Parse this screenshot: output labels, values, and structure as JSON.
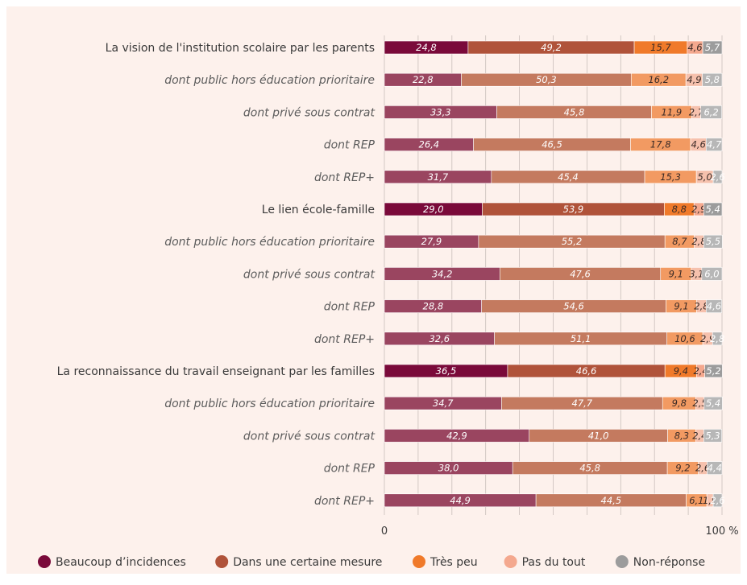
{
  "chart_data": {
    "type": "bar",
    "orientation": "horizontal",
    "stacked": true,
    "xlim": [
      0,
      100
    ],
    "x_tick_labels": [
      "0",
      "100 %"
    ],
    "categories": [
      {
        "label": "La vision de l'institution scolaire par les parents",
        "level": "main"
      },
      {
        "label": "dont public hors éducation prioritaire",
        "level": "sub"
      },
      {
        "label": "dont privé sous contrat",
        "level": "sub"
      },
      {
        "label": "dont REP",
        "level": "sub"
      },
      {
        "label": "dont REP+",
        "level": "sub"
      },
      {
        "label": "Le lien école-famille",
        "level": "main"
      },
      {
        "label": "dont public hors éducation prioritaire",
        "level": "sub"
      },
      {
        "label": "dont privé sous contrat",
        "level": "sub"
      },
      {
        "label": "dont REP",
        "level": "sub"
      },
      {
        "label": "dont REP+",
        "level": "sub"
      },
      {
        "label": "La reconnaissance du travail enseignant par les familles",
        "level": "main"
      },
      {
        "label": "dont public hors éducation prioritaire",
        "level": "sub"
      },
      {
        "label": "dont privé sous contrat",
        "level": "sub"
      },
      {
        "label": "dont REP",
        "level": "sub"
      },
      {
        "label": "dont REP+",
        "level": "sub"
      }
    ],
    "series": [
      {
        "name": "Beaucoup d’incidences",
        "color": "#7a0a3a",
        "color_sub": "#9a4560",
        "values": [
          24.8,
          22.8,
          33.3,
          26.4,
          31.7,
          29.0,
          27.9,
          34.2,
          28.8,
          32.6,
          36.5,
          34.7,
          42.9,
          38.0,
          44.9
        ],
        "labels": [
          "24,8",
          "22,8",
          "33,3",
          "26,4",
          "31,7",
          "29,0",
          "27,9",
          "34,2",
          "28,8",
          "32,6",
          "36,5",
          "34,7",
          "42,9",
          "38,0",
          "44,9"
        ]
      },
      {
        "name": "Dans une certaine mesure",
        "color": "#b0533a",
        "color_sub": "#c47a5f",
        "values": [
          49.2,
          50.3,
          45.8,
          46.5,
          45.4,
          53.9,
          55.2,
          47.6,
          54.6,
          51.1,
          46.6,
          47.7,
          41.0,
          45.8,
          44.5
        ],
        "labels": [
          "49,2",
          "50,3",
          "45,8",
          "46,5",
          "45,4",
          "53,9",
          "55,2",
          "47,6",
          "54,6",
          "51,1",
          "46,6",
          "47,7",
          "41,0",
          "45,8",
          "44,5"
        ]
      },
      {
        "name": "Très peu",
        "color": "#f07a2a",
        "color_sub": "#f29a62",
        "values": [
          15.7,
          16.2,
          11.9,
          17.8,
          15.3,
          8.8,
          8.7,
          9.1,
          9.1,
          10.6,
          9.4,
          9.8,
          8.3,
          9.2,
          6.1
        ],
        "labels": [
          "15,7",
          "16,2",
          "11,9",
          "17,8",
          "15,3",
          "8,8",
          "8,7",
          "9,1",
          "9,1",
          "10,6",
          "9,4",
          "9,8",
          "8,3",
          "9,2",
          "6,1"
        ]
      },
      {
        "name": "Pas du tout",
        "color": "#f4a88e",
        "color_sub": "#f6c1ad",
        "values": [
          4.6,
          4.9,
          2.7,
          4.6,
          5.0,
          2.9,
          2.8,
          3.1,
          2.8,
          2.9,
          2.4,
          2.5,
          2.4,
          2.6,
          1.9
        ],
        "labels": [
          "4,6",
          "4,9",
          "2,7",
          "4,6",
          "5,0",
          "2,9",
          "2,8",
          "3,1",
          "2,8",
          "2,9",
          "2,4",
          "2,5",
          "2,4",
          "2,6",
          "1,9"
        ]
      },
      {
        "name": "Non-réponse",
        "color": "#9c9c9c",
        "color_sub": "#b7b7b7",
        "values": [
          5.7,
          5.8,
          6.2,
          4.7,
          2.6,
          5.4,
          5.5,
          6.0,
          4.6,
          2.8,
          5.2,
          5.4,
          5.3,
          4.4,
          2.6
        ],
        "labels": [
          "5,7",
          "5,8",
          "6,2",
          "4,7",
          "2,6",
          "5,4",
          "5,5",
          "6,0",
          "4,6",
          "2,8",
          "5,2",
          "5,4",
          "5,3",
          "4,4",
          "2,6"
        ]
      }
    ],
    "legend_position": "bottom"
  }
}
